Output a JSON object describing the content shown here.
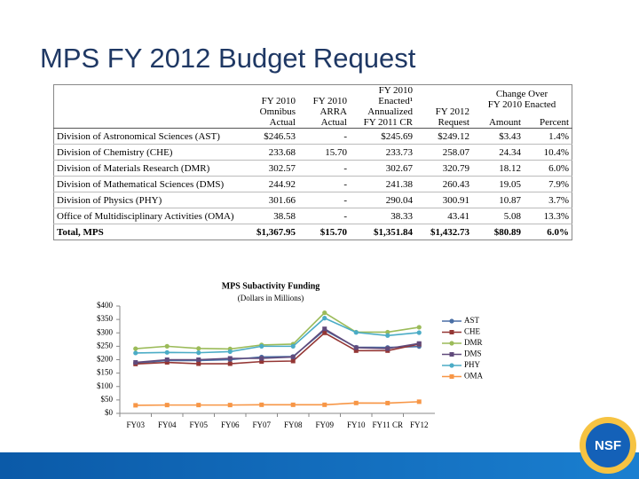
{
  "title": "MPS FY 2012 Budget Request",
  "table": {
    "header": [
      "FY 2010\nOmnibus\nActual",
      "FY 2010\nARRA\nActual",
      "FY 2010\nEnacted¹\nAnnualized\nFY 2011 CR",
      "FY 2012\nRequest"
    ],
    "group_header": "Change Over\nFY 2010 Enacted",
    "sub_header": [
      "Amount",
      "Percent"
    ],
    "rows": [
      [
        "Division of Astronomical Sciences (AST)",
        "$246.53",
        "-",
        "$245.69",
        "$249.12",
        "$3.43",
        "1.4%"
      ],
      [
        "Division of Chemistry (CHE)",
        "233.68",
        "15.70",
        "233.73",
        "258.07",
        "24.34",
        "10.4%"
      ],
      [
        "Division of Materials Research (DMR)",
        "302.57",
        "-",
        "302.67",
        "320.79",
        "18.12",
        "6.0%"
      ],
      [
        "Division of Mathematical Sciences (DMS)",
        "244.92",
        "-",
        "241.38",
        "260.43",
        "19.05",
        "7.9%"
      ],
      [
        "Division of Physics (PHY)",
        "301.66",
        "-",
        "290.04",
        "300.91",
        "10.87",
        "3.7%"
      ],
      [
        "Office of Multidisciplinary Activities (OMA)",
        "38.58",
        "-",
        "38.33",
        "43.41",
        "5.08",
        "13.3%"
      ],
      [
        "Total, MPS",
        "$1,367.95",
        "$15.70",
        "$1,351.84",
        "$1,432.73",
        "$80.89",
        "6.0%"
      ]
    ]
  },
  "chart_data": {
    "type": "line",
    "title": "MPS Subactivity Funding",
    "subtitle": "(Dollars in Millions)",
    "categories": [
      "FY03",
      "FY04",
      "FY05",
      "FY06",
      "FY07",
      "FY08",
      "FY09",
      "FY10",
      "FY11 CR",
      "FY12"
    ],
    "ylim": [
      0,
      400
    ],
    "yticks": [
      {
        "value": 0,
        "label": "$0"
      },
      {
        "value": 50,
        "label": "$50"
      },
      {
        "value": 100,
        "label": "$100"
      },
      {
        "value": 150,
        "label": "$150"
      },
      {
        "value": 200,
        "label": "$200"
      },
      {
        "value": 250,
        "label": "$250"
      },
      {
        "value": 300,
        "label": "$300"
      },
      {
        "value": 350,
        "label": "$350"
      },
      {
        "value": 400,
        "label": "$400"
      }
    ],
    "legend": "right",
    "series": [
      {
        "name": "AST",
        "color": "#4a6fa5",
        "values": [
          187,
          197,
          197,
          200,
          210,
          212,
          310,
          246.53,
          245.69,
          249.12
        ]
      },
      {
        "name": "CHE",
        "color": "#943634",
        "values": [
          184,
          190,
          185,
          185,
          193,
          195,
          300,
          233.68,
          233.73,
          258.07
        ]
      },
      {
        "name": "DMR",
        "color": "#9bbb59",
        "values": [
          241,
          250,
          242,
          240,
          255,
          258,
          375,
          302.57,
          302.67,
          320.79
        ]
      },
      {
        "name": "DMS",
        "color": "#604a7b",
        "values": [
          190,
          200,
          200,
          205,
          205,
          210,
          315,
          244.92,
          241.38,
          260.43
        ]
      },
      {
        "name": "PHY",
        "color": "#4bacc6",
        "values": [
          225,
          227,
          226,
          230,
          250,
          250,
          355,
          301.66,
          290.04,
          300.91
        ]
      },
      {
        "name": "OMA",
        "color": "#f79646",
        "values": [
          30,
          31,
          31,
          31,
          32,
          32,
          32,
          38.58,
          38.33,
          43.41
        ]
      }
    ]
  },
  "logo_text": "NSF"
}
